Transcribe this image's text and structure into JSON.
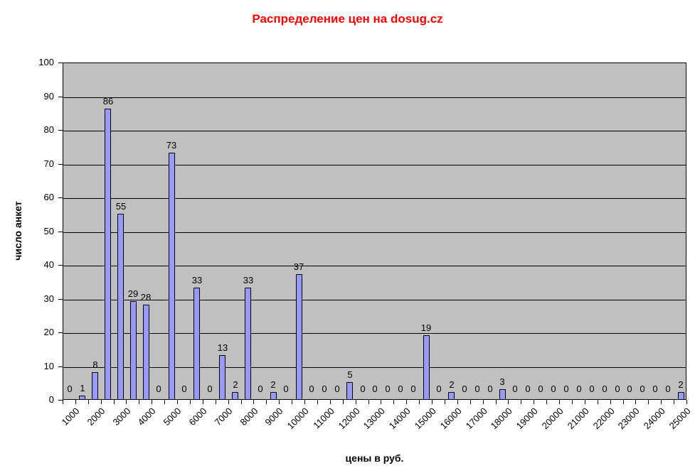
{
  "chart_data": {
    "type": "bar",
    "title": "Распределение цен на dosug.cz",
    "title_color": "#ff0000",
    "xlabel": "цены в руб.",
    "ylabel": "число анкет",
    "categories": [
      1000,
      1500,
      2000,
      2500,
      3000,
      3500,
      4000,
      4500,
      5000,
      5500,
      6000,
      6500,
      7000,
      7500,
      8000,
      8500,
      9000,
      9500,
      10000,
      10500,
      11000,
      11500,
      12000,
      12500,
      13000,
      13500,
      14000,
      14500,
      15000,
      15500,
      16000,
      16500,
      17000,
      17500,
      18000,
      18500,
      19000,
      19500,
      20000,
      20500,
      21000,
      21500,
      22000,
      22500,
      23000,
      23500,
      24000,
      24500,
      25000
    ],
    "values": [
      0,
      1,
      8,
      86,
      55,
      29,
      28,
      0,
      73,
      0,
      33,
      0,
      13,
      2,
      33,
      0,
      2,
      0,
      37,
      0,
      0,
      0,
      5,
      0,
      0,
      0,
      0,
      0,
      19,
      0,
      2,
      0,
      0,
      0,
      3,
      0,
      0,
      0,
      0,
      0,
      0,
      0,
      0,
      0,
      0,
      0,
      0,
      0,
      2
    ],
    "x_tick_labels": [
      "1000",
      "2000",
      "3000",
      "4000",
      "5000",
      "6000",
      "7000",
      "8000",
      "9000",
      "10000",
      "11000",
      "12000",
      "13000",
      "14000",
      "15000",
      "16000",
      "17000",
      "18000",
      "19000",
      "20000",
      "21000",
      "22000",
      "23000",
      "24000",
      "25000"
    ],
    "x_label_every": 2,
    "yticks": [
      0,
      10,
      20,
      30,
      40,
      50,
      60,
      70,
      80,
      90,
      100
    ],
    "ylim": [
      0,
      100
    ],
    "grid": true,
    "legend": false,
    "data_labels": true,
    "bar_color": "#9999ff",
    "bar_border_color": "#000000",
    "plot_bg": "#c0c0c0",
    "axis_color": "#000000"
  }
}
